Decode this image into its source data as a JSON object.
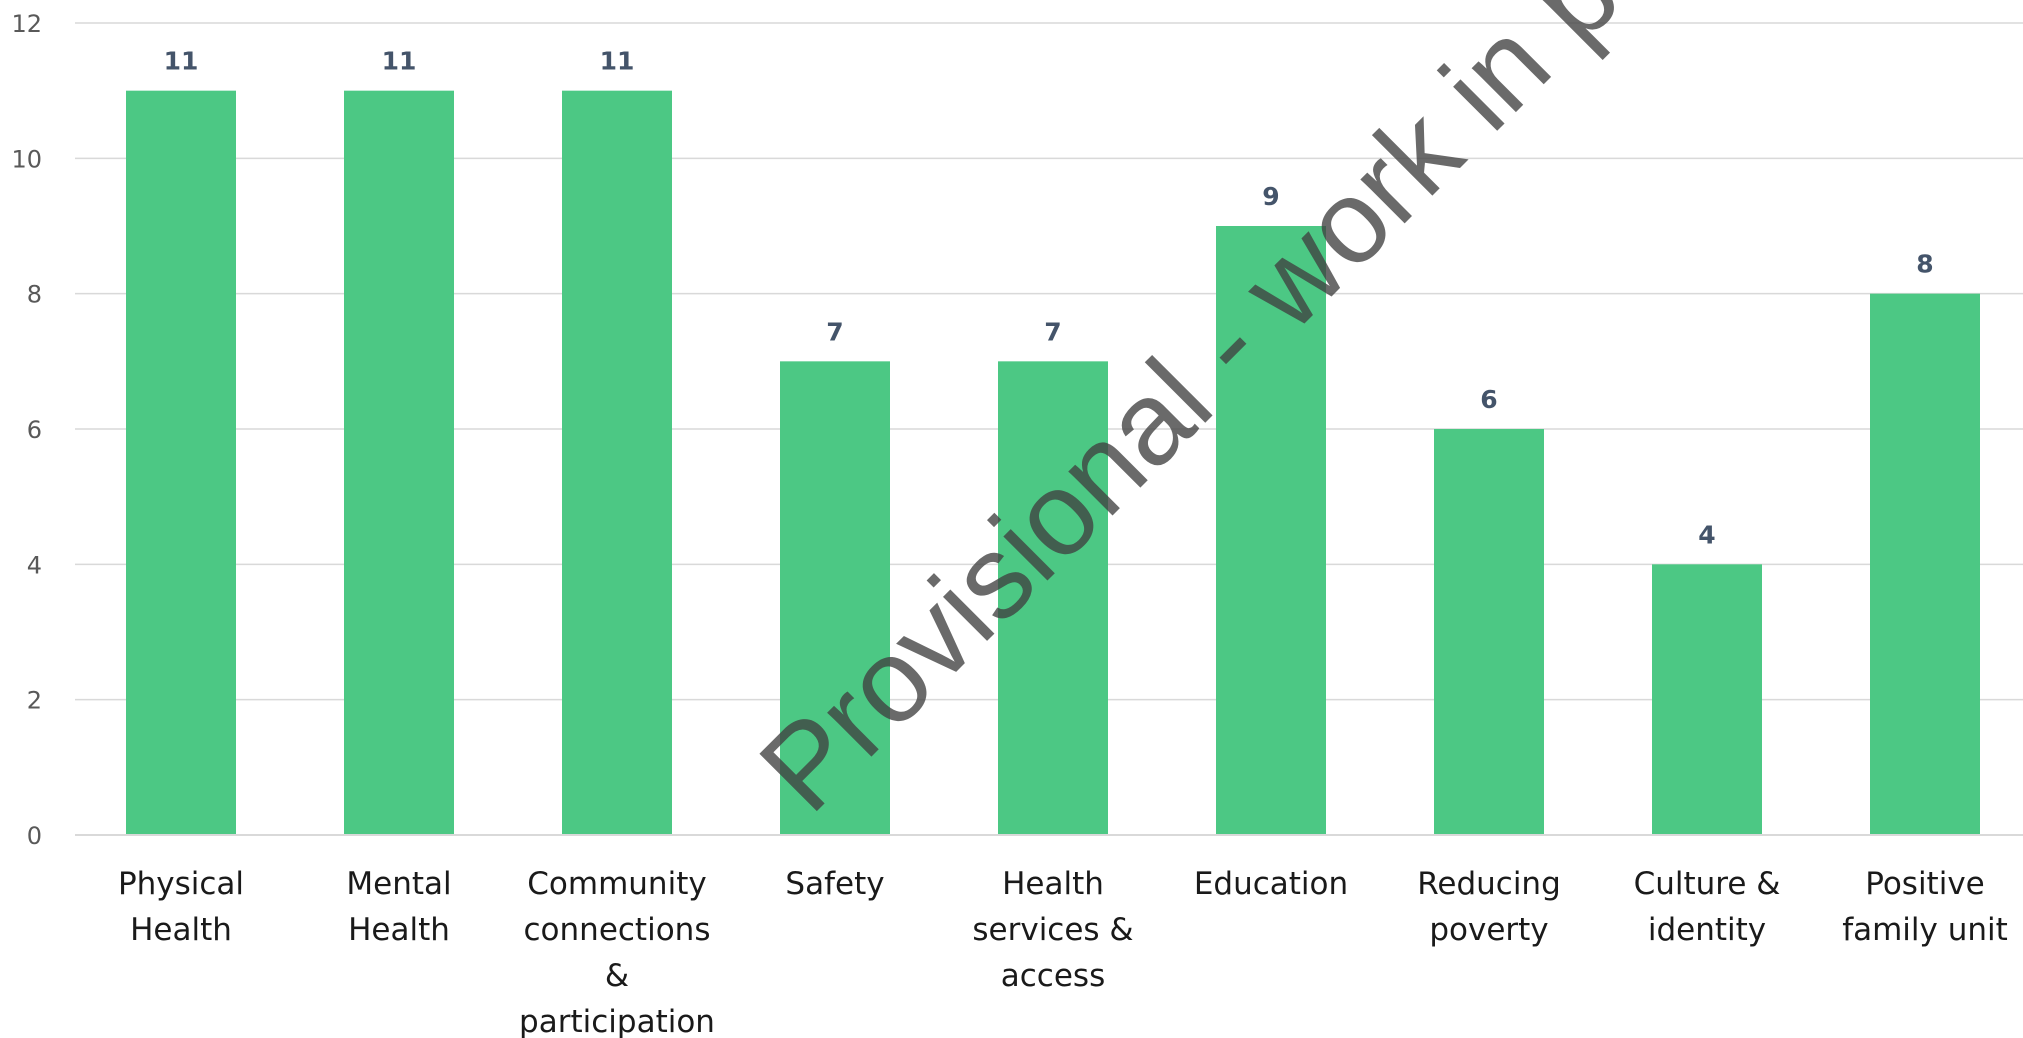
{
  "chart_data": {
    "type": "bar",
    "categories": [
      [
        "Physical",
        "Health"
      ],
      [
        "Mental",
        "Health"
      ],
      [
        "Community",
        "connections",
        "&",
        "participation"
      ],
      [
        "Safety"
      ],
      [
        "Health",
        "services &",
        "access"
      ],
      [
        "Education"
      ],
      [
        "Reducing",
        "poverty"
      ],
      [
        "Culture &",
        "identity"
      ],
      [
        "Positive",
        "family unit"
      ]
    ],
    "values": [
      11,
      11,
      11,
      7,
      7,
      9,
      6,
      4,
      8
    ],
    "ylim": [
      0,
      12
    ],
    "yticks": [
      0,
      2,
      4,
      6,
      8,
      10,
      12
    ],
    "grid": true,
    "bar_color": "#4cc884",
    "data_labels": true
  },
  "watermark": "Provisional - work in progress"
}
